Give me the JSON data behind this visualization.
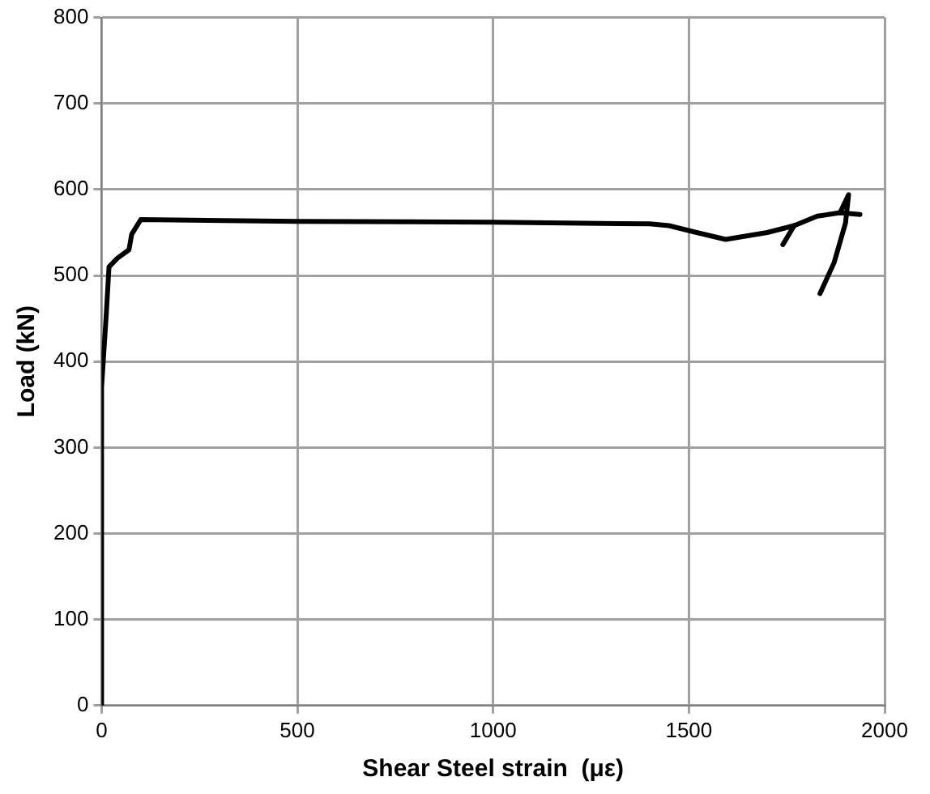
{
  "chart_data": {
    "type": "line",
    "xlabel": "Shear Steel strain  (με)",
    "ylabel": "Load (kN)",
    "xlim": [
      0,
      2000
    ],
    "xticks": [
      0,
      500,
      1000,
      1500,
      2000
    ],
    "ylim": [
      0,
      800
    ],
    "yticks": [
      0,
      100,
      200,
      300,
      400,
      500,
      600,
      700,
      800
    ],
    "grid": true,
    "legend": false,
    "marker": "none",
    "line_style": "solid",
    "series": [
      {
        "color": "#000000",
        "x": [
          0,
          0,
          12,
          19,
          40,
          70,
          77,
          100,
          500,
          1000,
          1400,
          1449,
          1520,
          1594,
          1700,
          1769,
          1828,
          1886,
          1937
        ],
        "values": [
          0,
          370,
          455,
          510,
          520,
          530,
          548,
          565,
          563,
          562,
          560,
          558,
          550,
          542,
          550,
          558,
          569,
          573,
          571
        ]
      },
      {
        "color": "#000000",
        "x": [
          1886,
          1908,
          1900,
          1871,
          1835
        ],
        "values": [
          573,
          594,
          561,
          515,
          479
        ]
      },
      {
        "color": "#000000",
        "x": [
          1740,
          1769
        ],
        "values": [
          536,
          558
        ]
      }
    ]
  }
}
